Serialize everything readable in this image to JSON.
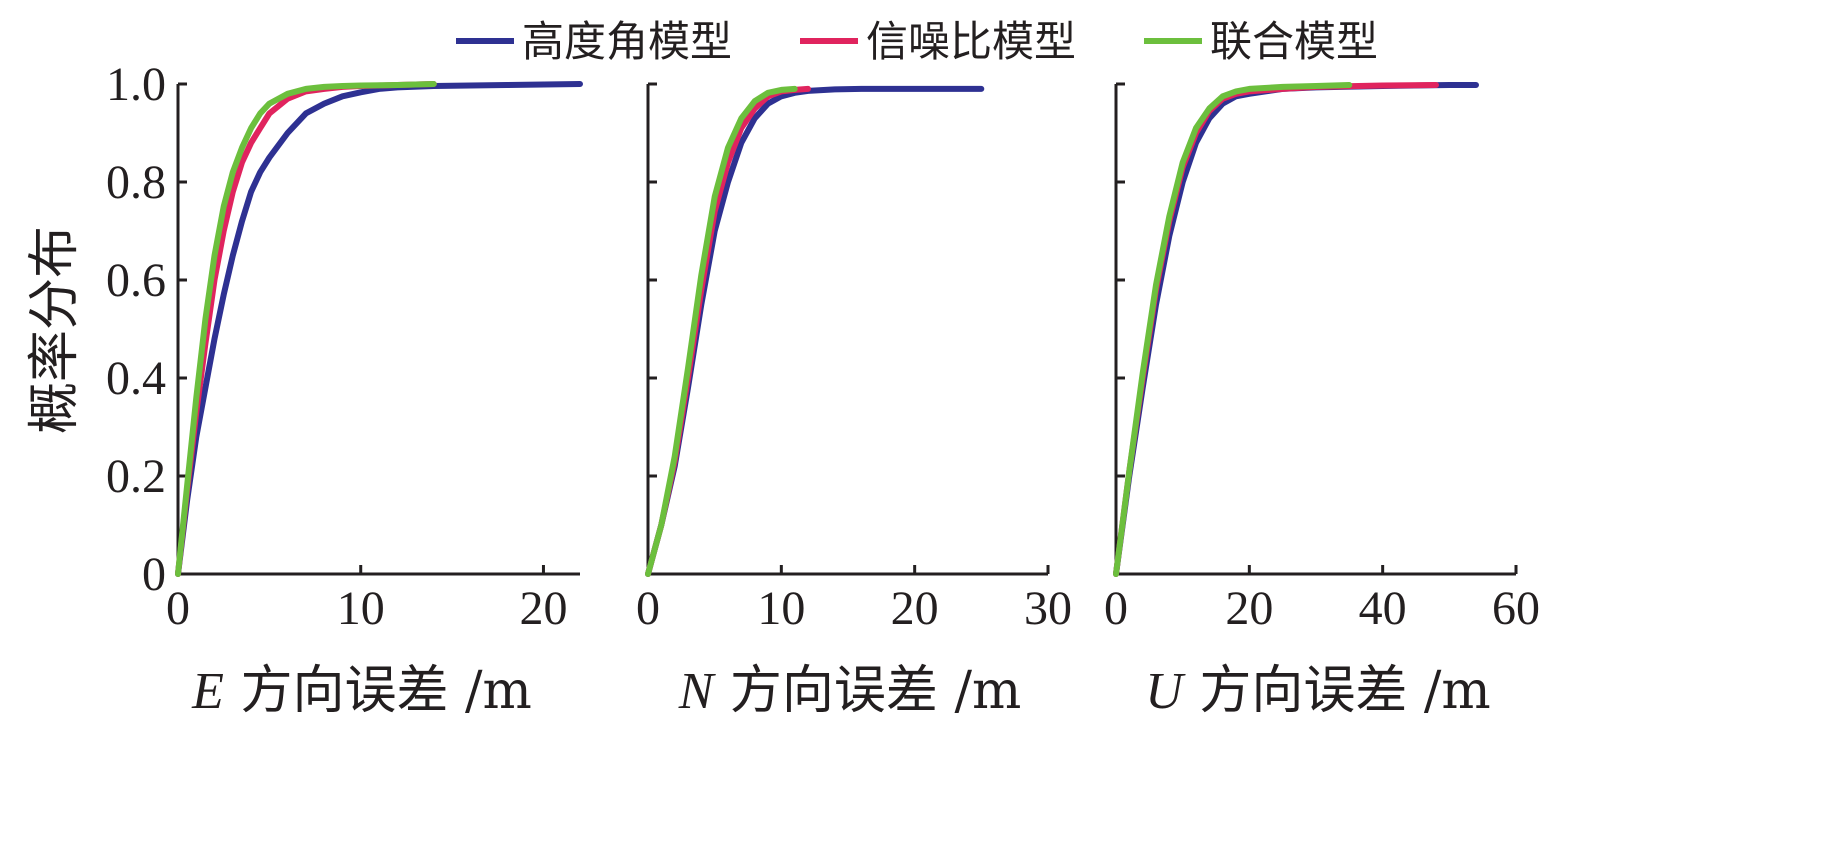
{
  "legend": [
    {
      "name": "高度角模型",
      "color": "#2e3192"
    },
    {
      "name": "信噪比模型",
      "color": "#e0245e"
    },
    {
      "name": "联合模型",
      "color": "#6cbf3d"
    }
  ],
  "ylabel": "概率分布",
  "chart_data": [
    {
      "type": "line",
      "xlabel_var": "E",
      "xlabel_rest": "方向误差 /m",
      "xlim": [
        0,
        22
      ],
      "ylim": [
        0,
        1
      ],
      "xticks": [
        0,
        10,
        20
      ],
      "yticks": [
        0,
        0.2,
        0.4,
        0.6,
        0.8,
        1.0
      ],
      "ytick_labels": [
        "0",
        "0.2",
        "0.4",
        "0.6",
        "0.8",
        "1.0"
      ],
      "grid": false,
      "series": [
        {
          "name": "高度角模型",
          "color": "#2e3192",
          "x": [
            0,
            0.5,
            1,
            1.5,
            2,
            2.5,
            3,
            3.5,
            4,
            4.5,
            5,
            6,
            7,
            8,
            9,
            10,
            11,
            12,
            14,
            18,
            22
          ],
          "y": [
            0,
            0.15,
            0.28,
            0.38,
            0.48,
            0.57,
            0.65,
            0.72,
            0.78,
            0.82,
            0.85,
            0.9,
            0.94,
            0.96,
            0.975,
            0.983,
            0.99,
            0.993,
            0.996,
            0.998,
            1.0
          ]
        },
        {
          "name": "信噪比模型",
          "color": "#e0245e",
          "x": [
            0,
            0.5,
            1,
            1.5,
            2,
            2.5,
            3,
            3.5,
            4,
            4.5,
            5,
            6,
            7,
            8,
            9,
            10,
            12,
            14
          ],
          "y": [
            0,
            0.17,
            0.33,
            0.47,
            0.6,
            0.7,
            0.78,
            0.84,
            0.88,
            0.91,
            0.94,
            0.97,
            0.985,
            0.99,
            0.994,
            0.996,
            0.998,
            1.0
          ]
        },
        {
          "name": "联合模型",
          "color": "#6cbf3d",
          "x": [
            0,
            0.5,
            1,
            1.5,
            2,
            2.5,
            3,
            3.5,
            4,
            4.5,
            5,
            6,
            7,
            8,
            9,
            10,
            12,
            14
          ],
          "y": [
            0,
            0.18,
            0.36,
            0.52,
            0.65,
            0.75,
            0.82,
            0.87,
            0.91,
            0.94,
            0.96,
            0.98,
            0.99,
            0.994,
            0.996,
            0.997,
            0.998,
            1.0
          ]
        }
      ]
    },
    {
      "type": "line",
      "xlabel_var": "N",
      "xlabel_rest": "方向误差 /m",
      "xlim": [
        0,
        30
      ],
      "ylim": [
        0,
        1
      ],
      "xticks": [
        0,
        10,
        20,
        30
      ],
      "yticks": [
        0,
        0.2,
        0.4,
        0.6,
        0.8,
        1.0
      ],
      "grid": false,
      "series": [
        {
          "name": "高度角模型",
          "color": "#2e3192",
          "x": [
            0,
            1,
            2,
            3,
            4,
            5,
            6,
            7,
            8,
            9,
            10,
            11,
            12,
            14,
            16,
            20,
            25
          ],
          "y": [
            0,
            0.1,
            0.22,
            0.38,
            0.55,
            0.7,
            0.8,
            0.88,
            0.93,
            0.96,
            0.975,
            0.982,
            0.986,
            0.989,
            0.99,
            0.99,
            0.99
          ]
        },
        {
          "name": "信噪比模型",
          "color": "#e0245e",
          "x": [
            0,
            1,
            2,
            3,
            4,
            5,
            6,
            7,
            8,
            9,
            10,
            11,
            12
          ],
          "y": [
            0,
            0.1,
            0.23,
            0.4,
            0.58,
            0.74,
            0.84,
            0.91,
            0.95,
            0.975,
            0.985,
            0.988,
            0.99
          ]
        },
        {
          "name": "联合模型",
          "color": "#6cbf3d",
          "x": [
            0,
            1,
            2,
            3,
            4,
            5,
            6,
            7,
            8,
            9,
            10,
            11
          ],
          "y": [
            0,
            0.1,
            0.24,
            0.42,
            0.61,
            0.77,
            0.87,
            0.93,
            0.965,
            0.982,
            0.988,
            0.99
          ]
        }
      ]
    },
    {
      "type": "line",
      "xlabel_var": "U",
      "xlabel_rest": "方向误差 /m",
      "xlim": [
        0,
        60
      ],
      "ylim": [
        0,
        1
      ],
      "xticks": [
        0,
        20,
        40,
        60
      ],
      "yticks": [
        0,
        0.2,
        0.4,
        0.6,
        0.8,
        1.0
      ],
      "grid": false,
      "series": [
        {
          "name": "高度角模型",
          "color": "#2e3192",
          "x": [
            0,
            2,
            4,
            6,
            8,
            10,
            12,
            14,
            16,
            18,
            20,
            25,
            30,
            40,
            50,
            54
          ],
          "y": [
            0,
            0.2,
            0.38,
            0.55,
            0.69,
            0.8,
            0.88,
            0.93,
            0.96,
            0.975,
            0.98,
            0.99,
            0.993,
            0.996,
            0.998,
            0.998
          ]
        },
        {
          "name": "信噪比模型",
          "color": "#e0245e",
          "x": [
            0,
            2,
            4,
            6,
            8,
            10,
            12,
            14,
            16,
            18,
            20,
            25,
            30,
            40,
            48
          ],
          "y": [
            0,
            0.21,
            0.4,
            0.58,
            0.72,
            0.83,
            0.9,
            0.945,
            0.97,
            0.98,
            0.985,
            0.99,
            0.994,
            0.997,
            0.998
          ]
        },
        {
          "name": "联合模型",
          "color": "#6cbf3d",
          "x": [
            0,
            2,
            4,
            6,
            8,
            10,
            12,
            14,
            16,
            18,
            20,
            25,
            30,
            35
          ],
          "y": [
            0,
            0.21,
            0.41,
            0.59,
            0.73,
            0.84,
            0.91,
            0.95,
            0.975,
            0.985,
            0.99,
            0.994,
            0.996,
            0.998
          ]
        }
      ]
    }
  ]
}
